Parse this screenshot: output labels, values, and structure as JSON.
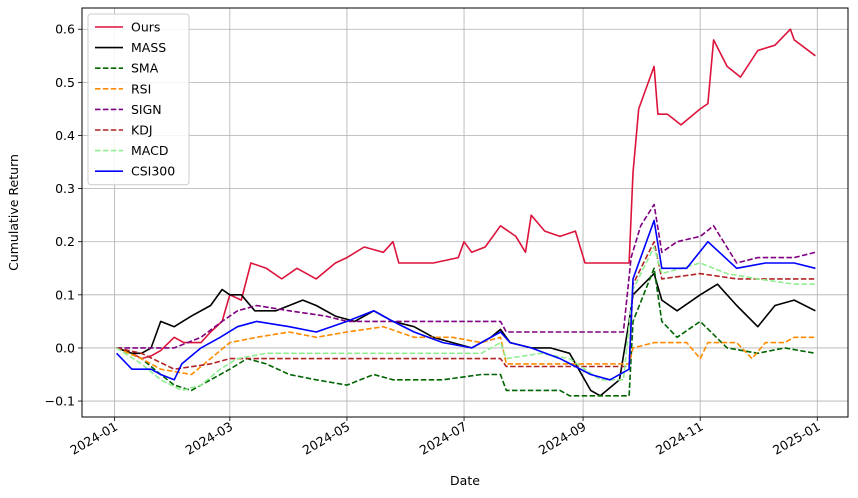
{
  "chart_data": {
    "type": "line",
    "title": "",
    "xlabel": "Date",
    "ylabel": "Cumulative Return",
    "xlim": [
      "2023-12-15",
      "2025-01-17"
    ],
    "ylim": [
      -0.13,
      0.64
    ],
    "grid": true,
    "legend_position": "top-left",
    "x_ticks": [
      "2024-01",
      "2024-03",
      "2024-05",
      "2024-07",
      "2024-09",
      "2024-11",
      "2025-01"
    ],
    "y_ticks": [
      -0.1,
      0.0,
      0.1,
      0.2,
      0.3,
      0.4,
      0.5,
      0.6
    ],
    "y_tick_labels": [
      "−0.1",
      "0.0",
      "0.1",
      "0.2",
      "0.3",
      "0.4",
      "0.5",
      "0.6"
    ],
    "series": [
      {
        "name": "Ours",
        "color": "#dc143c",
        "dash": "solid",
        "points": [
          [
            "2024-01-02",
            0.0
          ],
          [
            "2024-01-10",
            -0.01
          ],
          [
            "2024-01-15",
            -0.02
          ],
          [
            "2024-01-20",
            -0.015
          ],
          [
            "2024-01-25",
            -0.005
          ],
          [
            "2024-02-01",
            0.02
          ],
          [
            "2024-02-06",
            0.01
          ],
          [
            "2024-02-15",
            0.01
          ],
          [
            "2024-02-20",
            0.03
          ],
          [
            "2024-02-26",
            0.05
          ],
          [
            "2024-03-01",
            0.1
          ],
          [
            "2024-03-07",
            0.09
          ],
          [
            "2024-03-12",
            0.16
          ],
          [
            "2024-03-20",
            0.15
          ],
          [
            "2024-03-28",
            0.13
          ],
          [
            "2024-04-05",
            0.15
          ],
          [
            "2024-04-15",
            0.13
          ],
          [
            "2024-04-25",
            0.16
          ],
          [
            "2024-05-01",
            0.17
          ],
          [
            "2024-05-10",
            0.19
          ],
          [
            "2024-05-20",
            0.18
          ],
          [
            "2024-05-25",
            0.2
          ],
          [
            "2024-05-28",
            0.16
          ],
          [
            "2024-06-15",
            0.16
          ],
          [
            "2024-06-28",
            0.17
          ],
          [
            "2024-07-01",
            0.2
          ],
          [
            "2024-07-05",
            0.18
          ],
          [
            "2024-07-12",
            0.19
          ],
          [
            "2024-07-20",
            0.23
          ],
          [
            "2024-07-28",
            0.21
          ],
          [
            "2024-08-02",
            0.18
          ],
          [
            "2024-08-05",
            0.25
          ],
          [
            "2024-08-12",
            0.22
          ],
          [
            "2024-08-20",
            0.21
          ],
          [
            "2024-08-28",
            0.22
          ],
          [
            "2024-09-02",
            0.16
          ],
          [
            "2024-09-15",
            0.16
          ],
          [
            "2024-09-25",
            0.16
          ],
          [
            "2024-09-27",
            0.33
          ],
          [
            "2024-09-30",
            0.45
          ],
          [
            "2024-10-08",
            0.53
          ],
          [
            "2024-10-10",
            0.44
          ],
          [
            "2024-10-15",
            0.44
          ],
          [
            "2024-10-22",
            0.42
          ],
          [
            "2024-11-01",
            0.45
          ],
          [
            "2024-11-05",
            0.46
          ],
          [
            "2024-11-08",
            0.58
          ],
          [
            "2024-11-15",
            0.53
          ],
          [
            "2024-11-22",
            0.51
          ],
          [
            "2024-12-01",
            0.56
          ],
          [
            "2024-12-10",
            0.57
          ],
          [
            "2024-12-18",
            0.6
          ],
          [
            "2024-12-20",
            0.58
          ],
          [
            "2024-12-31",
            0.55
          ]
        ]
      },
      {
        "name": "MASS",
        "color": "#000000",
        "dash": "solid",
        "points": [
          [
            "2024-01-02",
            0.0
          ],
          [
            "2024-01-10",
            -0.01
          ],
          [
            "2024-01-15",
            -0.01
          ],
          [
            "2024-01-20",
            0.0
          ],
          [
            "2024-01-25",
            0.05
          ],
          [
            "2024-02-01",
            0.04
          ],
          [
            "2024-02-10",
            0.06
          ],
          [
            "2024-02-20",
            0.08
          ],
          [
            "2024-02-26",
            0.11
          ],
          [
            "2024-03-01",
            0.1
          ],
          [
            "2024-03-07",
            0.1
          ],
          [
            "2024-03-14",
            0.07
          ],
          [
            "2024-03-25",
            0.07
          ],
          [
            "2024-04-01",
            0.08
          ],
          [
            "2024-04-08",
            0.09
          ],
          [
            "2024-04-15",
            0.08
          ],
          [
            "2024-04-25",
            0.06
          ],
          [
            "2024-05-05",
            0.05
          ],
          [
            "2024-05-15",
            0.07
          ],
          [
            "2024-05-25",
            0.05
          ],
          [
            "2024-06-05",
            0.04
          ],
          [
            "2024-06-15",
            0.02
          ],
          [
            "2024-06-25",
            0.01
          ],
          [
            "2024-07-05",
            0.0
          ],
          [
            "2024-07-15",
            0.02
          ],
          [
            "2024-07-20",
            0.035
          ],
          [
            "2024-07-25",
            0.01
          ],
          [
            "2024-08-05",
            0.0
          ],
          [
            "2024-08-15",
            0.0
          ],
          [
            "2024-08-25",
            -0.01
          ],
          [
            "2024-09-05",
            -0.08
          ],
          [
            "2024-09-10",
            -0.09
          ],
          [
            "2024-09-20",
            -0.06
          ],
          [
            "2024-09-25",
            0.05
          ],
          [
            "2024-09-27",
            0.1
          ],
          [
            "2024-10-08",
            0.14
          ],
          [
            "2024-10-12",
            0.09
          ],
          [
            "2024-10-20",
            0.07
          ],
          [
            "2024-11-01",
            0.1
          ],
          [
            "2024-11-10",
            0.12
          ],
          [
            "2024-11-20",
            0.08
          ],
          [
            "2024-12-01",
            0.04
          ],
          [
            "2024-12-10",
            0.08
          ],
          [
            "2024-12-20",
            0.09
          ],
          [
            "2024-12-31",
            0.07
          ]
        ]
      },
      {
        "name": "SMA",
        "color": "#006400",
        "dash": "dashed",
        "points": [
          [
            "2024-01-02",
            0.0
          ],
          [
            "2024-01-15",
            -0.02
          ],
          [
            "2024-01-25",
            -0.05
          ],
          [
            "2024-02-01",
            -0.07
          ],
          [
            "2024-02-10",
            -0.08
          ],
          [
            "2024-02-20",
            -0.06
          ],
          [
            "2024-03-01",
            -0.04
          ],
          [
            "2024-03-10",
            -0.02
          ],
          [
            "2024-03-20",
            -0.03
          ],
          [
            "2024-04-01",
            -0.05
          ],
          [
            "2024-04-15",
            -0.06
          ],
          [
            "2024-05-01",
            -0.07
          ],
          [
            "2024-05-15",
            -0.05
          ],
          [
            "2024-05-25",
            -0.06
          ],
          [
            "2024-06-20",
            -0.06
          ],
          [
            "2024-07-10",
            -0.05
          ],
          [
            "2024-07-20",
            -0.05
          ],
          [
            "2024-07-23",
            -0.08
          ],
          [
            "2024-08-20",
            -0.08
          ],
          [
            "2024-08-25",
            -0.09
          ],
          [
            "2024-09-25",
            -0.09
          ],
          [
            "2024-09-27",
            0.05
          ],
          [
            "2024-10-08",
            0.15
          ],
          [
            "2024-10-12",
            0.05
          ],
          [
            "2024-10-20",
            0.02
          ],
          [
            "2024-11-01",
            0.05
          ],
          [
            "2024-11-15",
            0.0
          ],
          [
            "2024-12-01",
            -0.01
          ],
          [
            "2024-12-15",
            0.0
          ],
          [
            "2024-12-31",
            -0.01
          ]
        ]
      },
      {
        "name": "RSI",
        "color": "#ff8c00",
        "dash": "dashed",
        "points": [
          [
            "2024-01-02",
            0.0
          ],
          [
            "2024-01-15",
            -0.02
          ],
          [
            "2024-01-25",
            -0.04
          ],
          [
            "2024-02-10",
            -0.05
          ],
          [
            "2024-02-20",
            -0.02
          ],
          [
            "2024-03-01",
            0.01
          ],
          [
            "2024-03-15",
            0.02
          ],
          [
            "2024-04-01",
            0.03
          ],
          [
            "2024-04-15",
            0.02
          ],
          [
            "2024-05-01",
            0.03
          ],
          [
            "2024-05-20",
            0.04
          ],
          [
            "2024-06-05",
            0.02
          ],
          [
            "2024-06-25",
            0.02
          ],
          [
            "2024-07-10",
            0.01
          ],
          [
            "2024-07-20",
            0.02
          ],
          [
            "2024-07-23",
            -0.03
          ],
          [
            "2024-08-25",
            -0.03
          ],
          [
            "2024-09-25",
            -0.03
          ],
          [
            "2024-09-27",
            0.0
          ],
          [
            "2024-10-08",
            0.01
          ],
          [
            "2024-10-25",
            0.01
          ],
          [
            "2024-11-01",
            -0.02
          ],
          [
            "2024-11-05",
            0.01
          ],
          [
            "2024-11-20",
            0.01
          ],
          [
            "2024-11-28",
            -0.02
          ],
          [
            "2024-12-05",
            0.01
          ],
          [
            "2024-12-15",
            0.01
          ],
          [
            "2024-12-20",
            0.02
          ],
          [
            "2024-12-31",
            0.02
          ]
        ]
      },
      {
        "name": "SIGN",
        "color": "#800080",
        "dash": "dashed",
        "points": [
          [
            "2024-01-02",
            0.0
          ],
          [
            "2024-01-15",
            0.0
          ],
          [
            "2024-02-01",
            0.0
          ],
          [
            "2024-02-15",
            0.02
          ],
          [
            "2024-02-26",
            0.05
          ],
          [
            "2024-03-05",
            0.07
          ],
          [
            "2024-03-15",
            0.08
          ],
          [
            "2024-04-01",
            0.07
          ],
          [
            "2024-04-20",
            0.06
          ],
          [
            "2024-05-01",
            0.05
          ],
          [
            "2024-05-15",
            0.05
          ],
          [
            "2024-07-20",
            0.05
          ],
          [
            "2024-07-23",
            0.03
          ],
          [
            "2024-08-25",
            0.03
          ],
          [
            "2024-09-22",
            0.03
          ],
          [
            "2024-09-26",
            0.17
          ],
          [
            "2024-10-01",
            0.23
          ],
          [
            "2024-10-08",
            0.27
          ],
          [
            "2024-10-12",
            0.18
          ],
          [
            "2024-10-20",
            0.2
          ],
          [
            "2024-11-01",
            0.21
          ],
          [
            "2024-11-08",
            0.23
          ],
          [
            "2024-11-20",
            0.16
          ],
          [
            "2024-12-01",
            0.17
          ],
          [
            "2024-12-20",
            0.17
          ],
          [
            "2024-12-31",
            0.18
          ]
        ]
      },
      {
        "name": "KDJ",
        "color": "#b22222",
        "dash": "dashed",
        "points": [
          [
            "2024-01-02",
            0.0
          ],
          [
            "2024-01-15",
            -0.01
          ],
          [
            "2024-02-01",
            -0.04
          ],
          [
            "2024-02-20",
            -0.03
          ],
          [
            "2024-03-01",
            -0.02
          ],
          [
            "2024-03-20",
            -0.02
          ],
          [
            "2024-05-01",
            -0.02
          ],
          [
            "2024-07-10",
            -0.02
          ],
          [
            "2024-07-20",
            -0.02
          ],
          [
            "2024-07-23",
            -0.035
          ],
          [
            "2024-09-25",
            -0.035
          ],
          [
            "2024-09-27",
            0.12
          ],
          [
            "2024-10-08",
            0.2
          ],
          [
            "2024-10-12",
            0.13
          ],
          [
            "2024-11-01",
            0.14
          ],
          [
            "2024-11-20",
            0.13
          ],
          [
            "2024-12-10",
            0.13
          ],
          [
            "2024-12-31",
            0.13
          ]
        ]
      },
      {
        "name": "MACD",
        "color": "#90ee90",
        "dash": "dashed",
        "points": [
          [
            "2024-01-02",
            0.0
          ],
          [
            "2024-01-15",
            -0.03
          ],
          [
            "2024-01-25",
            -0.06
          ],
          [
            "2024-02-05",
            -0.08
          ],
          [
            "2024-02-15",
            -0.07
          ],
          [
            "2024-02-25",
            -0.04
          ],
          [
            "2024-03-05",
            -0.02
          ],
          [
            "2024-03-20",
            -0.01
          ],
          [
            "2024-04-10",
            -0.01
          ],
          [
            "2024-05-10",
            -0.01
          ],
          [
            "2024-06-10",
            -0.01
          ],
          [
            "2024-07-10",
            -0.01
          ],
          [
            "2024-07-20",
            0.01
          ],
          [
            "2024-07-23",
            -0.02
          ],
          [
            "2024-08-10",
            -0.01
          ],
          [
            "2024-08-25",
            -0.02
          ],
          [
            "2024-09-10",
            -0.06
          ],
          [
            "2024-09-22",
            -0.06
          ],
          [
            "2024-09-27",
            0.11
          ],
          [
            "2024-10-08",
            0.19
          ],
          [
            "2024-10-12",
            0.14
          ],
          [
            "2024-11-01",
            0.16
          ],
          [
            "2024-11-15",
            0.14
          ],
          [
            "2024-12-01",
            0.13
          ],
          [
            "2024-12-20",
            0.12
          ],
          [
            "2024-12-31",
            0.12
          ]
        ]
      },
      {
        "name": "CSI300",
        "color": "#0000ff",
        "dash": "solid",
        "points": [
          [
            "2024-01-02",
            -0.01
          ],
          [
            "2024-01-10",
            -0.04
          ],
          [
            "2024-01-20",
            -0.04
          ],
          [
            "2024-01-25",
            -0.05
          ],
          [
            "2024-02-01",
            -0.06
          ],
          [
            "2024-02-05",
            -0.03
          ],
          [
            "2024-02-15",
            0.0
          ],
          [
            "2024-02-25",
            0.02
          ],
          [
            "2024-03-05",
            0.04
          ],
          [
            "2024-03-15",
            0.05
          ],
          [
            "2024-04-01",
            0.04
          ],
          [
            "2024-04-15",
            0.03
          ],
          [
            "2024-05-01",
            0.05
          ],
          [
            "2024-05-15",
            0.07
          ],
          [
            "2024-05-25",
            0.05
          ],
          [
            "2024-06-05",
            0.03
          ],
          [
            "2024-06-20",
            0.01
          ],
          [
            "2024-07-05",
            0.0
          ],
          [
            "2024-07-20",
            0.03
          ],
          [
            "2024-07-25",
            0.01
          ],
          [
            "2024-08-05",
            0.0
          ],
          [
            "2024-08-20",
            -0.02
          ],
          [
            "2024-09-05",
            -0.05
          ],
          [
            "2024-09-15",
            -0.06
          ],
          [
            "2024-09-25",
            -0.04
          ],
          [
            "2024-09-27",
            0.13
          ],
          [
            "2024-10-08",
            0.24
          ],
          [
            "2024-10-12",
            0.15
          ],
          [
            "2024-10-25",
            0.15
          ],
          [
            "2024-11-05",
            0.2
          ],
          [
            "2024-11-20",
            0.15
          ],
          [
            "2024-12-05",
            0.16
          ],
          [
            "2024-12-20",
            0.16
          ],
          [
            "2024-12-31",
            0.15
          ]
        ]
      }
    ]
  }
}
